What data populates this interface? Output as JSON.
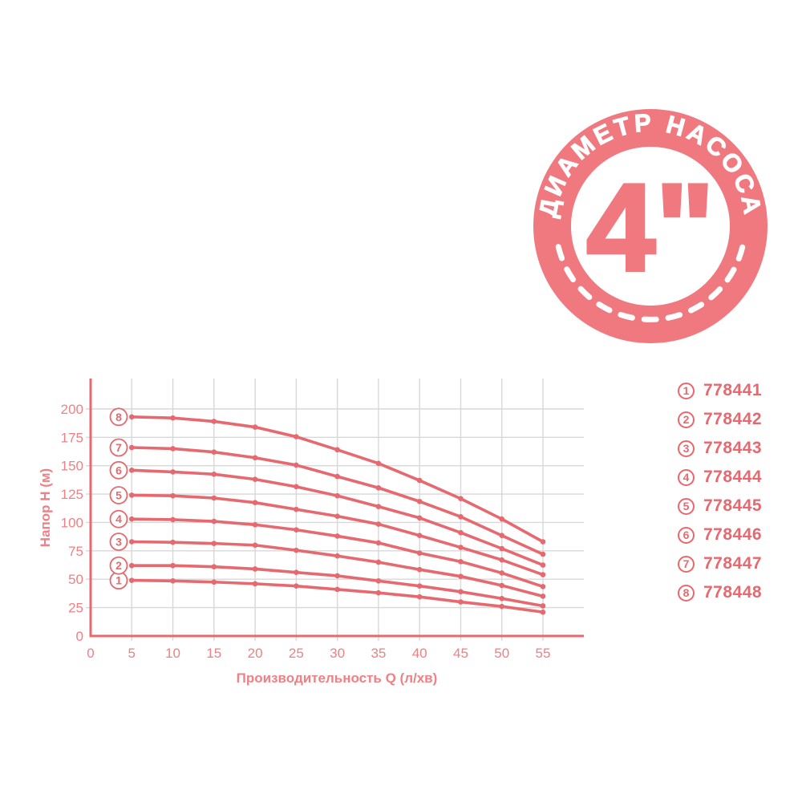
{
  "colors": {
    "accent": "#e5696f",
    "tick_label": "#ed8186",
    "badge": "#f0797f",
    "grid": "#d8d8d8",
    "background": "#ffffff"
  },
  "badge": {
    "arc_text": "ДИАМЕТР НАСОСА",
    "center_text": "4\""
  },
  "chart_data": {
    "type": "line",
    "title": "",
    "xlabel": "Производительность Q (л/хв)",
    "ylabel": "Напор H (м)",
    "xlim": [
      0,
      60
    ],
    "ylim": [
      0,
      226
    ],
    "grid": true,
    "legend_position": "right",
    "x_ticks": [
      0,
      5,
      10,
      15,
      20,
      25,
      30,
      35,
      40,
      45,
      50,
      55
    ],
    "y_ticks": [
      0,
      25,
      50,
      75,
      100,
      125,
      150,
      175,
      200
    ],
    "x": [
      5,
      10,
      15,
      20,
      25,
      30,
      35,
      40,
      45,
      50,
      55
    ],
    "series": [
      {
        "num": "1",
        "article": "778441",
        "values": [
          49,
          48.5,
          47.5,
          46,
          44,
          41,
          38,
          34.5,
          30,
          26,
          21
        ]
      },
      {
        "num": "2",
        "article": "778442",
        "values": [
          62,
          62,
          61,
          59,
          56,
          53,
          48.5,
          44,
          39,
          33,
          26.5
        ]
      },
      {
        "num": "3",
        "article": "778443",
        "values": [
          83,
          82.5,
          81.5,
          80,
          75.5,
          70.5,
          65,
          58.5,
          52.5,
          44.5,
          35
        ]
      },
      {
        "num": "4",
        "article": "778444",
        "values": [
          103,
          102.5,
          101,
          98,
          93.5,
          88,
          82,
          73,
          65.5,
          55.5,
          43.5
        ]
      },
      {
        "num": "5",
        "article": "778445",
        "values": [
          124,
          123.5,
          121.5,
          117.5,
          111.5,
          105.5,
          98.5,
          88.5,
          78,
          67,
          54
        ]
      },
      {
        "num": "6",
        "article": "778446",
        "values": [
          146,
          144.5,
          142.5,
          138,
          131.5,
          123.5,
          114,
          104,
          91,
          77,
          62.5
        ]
      },
      {
        "num": "7",
        "article": "778447",
        "values": [
          166,
          165,
          162,
          157,
          150.5,
          140.5,
          130.5,
          118.5,
          105,
          88.5,
          72
        ]
      },
      {
        "num": "8",
        "article": "778448",
        "values": [
          193,
          192,
          189,
          184,
          175.5,
          164,
          152,
          137,
          121,
          103,
          83
        ]
      }
    ]
  }
}
